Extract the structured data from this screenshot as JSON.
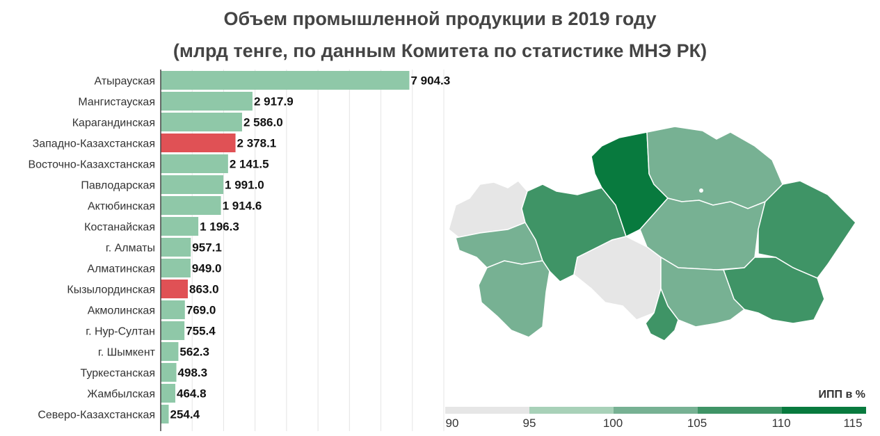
{
  "title_line1": "Объем промышленной продукции в 2019 году",
  "title_line2": "(млрд тенге, по данным Комитета по статистике МНЭ РК)",
  "colors": {
    "bar_default": "#8fc8a8",
    "bar_highlight": "#e05155",
    "map_gray": "#e6e6e6",
    "map_light": "#a8d1b8",
    "map_mid": "#77b193",
    "map_dark": "#3f9466",
    "map_darkest": "#087a3e"
  },
  "chart_data": {
    "type": "bar",
    "orientation": "horizontal",
    "categories": [
      "Атырауская",
      "Мангистауская",
      "Карагандинская",
      "Западно-Казахстанская",
      "Восточно-Казахстанская",
      "Павлодарская",
      "Актюбинская",
      "Костанайская",
      "г. Алматы",
      "Алматинская",
      "Кызылординская",
      "Акмолинская",
      "г. Нур-Султан",
      "г. Шымкент",
      "Туркестанская",
      "Жамбылская",
      "Северо-Казахстанская"
    ],
    "values": [
      7904.3,
      2917.9,
      2586.0,
      2378.1,
      2141.5,
      1991.0,
      1914.6,
      1196.3,
      957.1,
      949.0,
      863.0,
      769.0,
      755.4,
      562.3,
      498.3,
      464.8,
      254.4
    ],
    "value_labels": [
      "7 904.3",
      "2 917.9",
      "2 586.0",
      "2 378.1",
      "2 141.5",
      "1 991.0",
      "1 914.6",
      "1 196.3",
      "957.1",
      "949.0",
      "863.0",
      "769.0",
      "755.4",
      "562.3",
      "498.3",
      "464.8",
      "254.4"
    ],
    "highlighted": [
      "Западно-Казахстанская",
      "Кызылординская"
    ],
    "xlim": [
      0,
      9000
    ],
    "grid": true
  },
  "legend": {
    "title": "ИПП в %",
    "ticks": [
      "90",
      "95",
      "100",
      "105",
      "110",
      "115"
    ],
    "colors": [
      "#e6e6e6",
      "#a8d1b8",
      "#77b193",
      "#3f9466",
      "#087a3e"
    ]
  }
}
